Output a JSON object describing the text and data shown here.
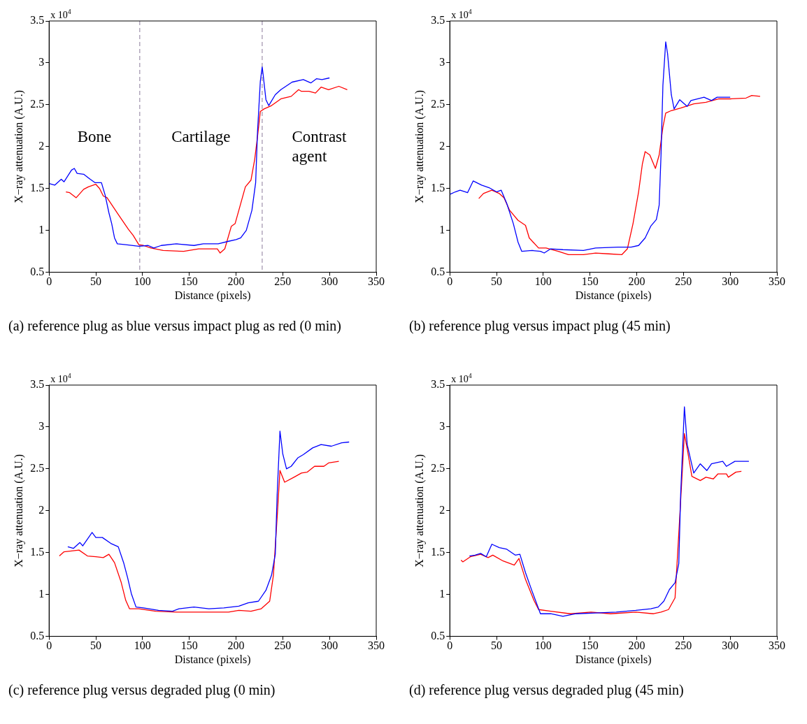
{
  "chart_data": [
    {
      "type": "line",
      "title": "(a) reference plug as blue versus impact plug as red (0 min)",
      "xlabel": "Distance (pixels)",
      "ylabel": "X−ray attenuation (A.U.)",
      "annotations": [
        "x 10$^{4}$",
        "Bone",
        "Cartilage",
        "Contrast agent"
      ],
      "xlim": [
        0,
        350
      ],
      "xticks": [
        0,
        50,
        100,
        150,
        200,
        250,
        300,
        350
      ],
      "ylim": [
        0.5,
        3.5
      ],
      "yticks": [
        0.5,
        1,
        1.5,
        2,
        2.5,
        3,
        3.5
      ],
      "grid": false,
      "legend": false,
      "ref_lines": [
        {
          "axis": "x",
          "value": 97,
          "color": "#8a7a9a",
          "line_style": "dashed"
        },
        {
          "axis": "x",
          "value": 228,
          "color": "#8a7a9a",
          "line_style": "dashed"
        }
      ],
      "series": [
        {
          "color": "#0000ff",
          "x": [
            0,
            6,
            13,
            16,
            24,
            27,
            30,
            37,
            44,
            49,
            56,
            60,
            64,
            67,
            70,
            73,
            82,
            96,
            106,
            112,
            120,
            136,
            155,
            165,
            181,
            192,
            200,
            205,
            211,
            217,
            221,
            223,
            226,
            228,
            229,
            232,
            235,
            242,
            248,
            260,
            272,
            280,
            286,
            292,
            300
          ],
          "values": [
            1.56,
            1.54,
            1.61,
            1.58,
            1.72,
            1.74,
            1.68,
            1.67,
            1.61,
            1.57,
            1.57,
            1.42,
            1.21,
            1.08,
            0.91,
            0.84,
            0.83,
            0.81,
            0.82,
            0.79,
            0.82,
            0.84,
            0.82,
            0.84,
            0.84,
            0.87,
            0.89,
            0.91,
            1.0,
            1.24,
            1.57,
            2.18,
            2.78,
            2.95,
            2.86,
            2.56,
            2.49,
            2.62,
            2.68,
            2.77,
            2.8,
            2.76,
            2.81,
            2.8,
            2.82
          ]
        },
        {
          "color": "#ff0000",
          "x": [
            18,
            22,
            29,
            37,
            42,
            50,
            54,
            58,
            62,
            74,
            85,
            90,
            96,
            101,
            109,
            122,
            144,
            160,
            180,
            183,
            188,
            195,
            199,
            205,
            210,
            216,
            220,
            223,
            226,
            230,
            238,
            248,
            259,
            267,
            270,
            278,
            285,
            291,
            299,
            310,
            319
          ],
          "values": [
            1.46,
            1.45,
            1.39,
            1.49,
            1.52,
            1.55,
            1.5,
            1.41,
            1.39,
            1.19,
            1.01,
            0.94,
            0.83,
            0.82,
            0.79,
            0.76,
            0.75,
            0.78,
            0.78,
            0.73,
            0.78,
            1.05,
            1.08,
            1.32,
            1.52,
            1.6,
            1.85,
            2.12,
            2.42,
            2.45,
            2.49,
            2.57,
            2.6,
            2.68,
            2.66,
            2.66,
            2.64,
            2.71,
            2.68,
            2.72,
            2.68
          ]
        }
      ]
    },
    {
      "type": "line",
      "title": "(b) reference plug versus impact plug (45 min)",
      "xlabel": "Distance (pixels)",
      "ylabel": "X−ray attenuation (A.U.)",
      "annotations": [
        "x 10$^{4}$"
      ],
      "xlim": [
        0,
        350
      ],
      "xticks": [
        0,
        50,
        100,
        150,
        200,
        250,
        300,
        350
      ],
      "ylim": [
        0.5,
        3.5
      ],
      "yticks": [
        0.5,
        1,
        1.5,
        2,
        2.5,
        3,
        3.5
      ],
      "grid": false,
      "legend": false,
      "series": [
        {
          "color": "#0000ff",
          "x": [
            0,
            6,
            11,
            19,
            25,
            34,
            42,
            50,
            55,
            61,
            68,
            73,
            77,
            88,
            97,
            101,
            108,
            121,
            143,
            156,
            180,
            194,
            202,
            209,
            215,
            221,
            224,
            226,
            228,
            231,
            233,
            237,
            240,
            246,
            254,
            258,
            272,
            280,
            286,
            300
          ],
          "values": [
            1.43,
            1.46,
            1.48,
            1.45,
            1.59,
            1.54,
            1.51,
            1.46,
            1.48,
            1.32,
            1.08,
            0.86,
            0.75,
            0.76,
            0.75,
            0.73,
            0.78,
            0.77,
            0.76,
            0.79,
            0.8,
            0.8,
            0.82,
            0.91,
            1.05,
            1.13,
            1.3,
            1.9,
            2.73,
            3.25,
            3.11,
            2.62,
            2.45,
            2.56,
            2.48,
            2.55,
            2.59,
            2.55,
            2.59,
            2.59
          ]
        },
        {
          "color": "#ff0000",
          "x": [
            31,
            36,
            45,
            53,
            58,
            64,
            73,
            81,
            85,
            95,
            103,
            116,
            127,
            143,
            156,
            170,
            184,
            190,
            196,
            202,
            206,
            209,
            214,
            220,
            224,
            228,
            231,
            237,
            247,
            261,
            274,
            288,
            301,
            317,
            323,
            332
          ],
          "values": [
            1.38,
            1.44,
            1.48,
            1.44,
            1.39,
            1.24,
            1.12,
            1.06,
            0.91,
            0.79,
            0.79,
            0.75,
            0.71,
            0.71,
            0.73,
            0.72,
            0.71,
            0.78,
            1.08,
            1.46,
            1.79,
            1.94,
            1.9,
            1.74,
            1.9,
            2.23,
            2.4,
            2.43,
            2.46,
            2.51,
            2.53,
            2.57,
            2.57,
            2.58,
            2.61,
            2.6
          ]
        }
      ]
    },
    {
      "type": "line",
      "title": "(c) reference plug versus degraded plug (0 min)",
      "xlabel": "Distance (pixels)",
      "ylabel": "X−ray attenuation (A.U.)",
      "annotations": [
        "x 10$^{4}$"
      ],
      "xlim": [
        0,
        350
      ],
      "xticks": [
        0,
        50,
        100,
        150,
        200,
        250,
        300,
        350
      ],
      "ylim": [
        0.5,
        3.5
      ],
      "yticks": [
        0.5,
        1,
        1.5,
        2,
        2.5,
        3,
        3.5
      ],
      "grid": false,
      "legend": false,
      "series": [
        {
          "color": "#0000ff",
          "x": [
            20,
            26,
            33,
            36,
            46,
            50,
            57,
            66,
            74,
            80,
            84,
            88,
            93,
            101,
            117,
            132,
            139,
            155,
            171,
            187,
            203,
            213,
            224,
            232,
            238,
            242,
            244,
            247,
            250,
            254,
            259,
            266,
            272,
            282,
            291,
            302,
            313,
            321
          ],
          "values": [
            1.57,
            1.55,
            1.62,
            1.58,
            1.74,
            1.68,
            1.68,
            1.61,
            1.57,
            1.37,
            1.2,
            1.01,
            0.85,
            0.84,
            0.81,
            0.8,
            0.83,
            0.85,
            0.83,
            0.84,
            0.86,
            0.9,
            0.92,
            1.05,
            1.23,
            1.48,
            2.19,
            2.95,
            2.68,
            2.5,
            2.53,
            2.63,
            2.67,
            2.75,
            2.79,
            2.77,
            2.81,
            2.82
          ]
        },
        {
          "color": "#ff0000",
          "x": [
            11,
            16,
            24,
            32,
            41,
            50,
            58,
            64,
            70,
            77,
            82,
            86,
            96,
            114,
            136,
            160,
            181,
            192,
            203,
            216,
            227,
            236,
            240,
            244,
            247,
            252,
            262,
            270,
            276,
            284,
            294,
            299,
            310
          ],
          "values": [
            1.46,
            1.51,
            1.52,
            1.53,
            1.46,
            1.45,
            1.44,
            1.48,
            1.38,
            1.15,
            0.93,
            0.83,
            0.83,
            0.8,
            0.79,
            0.79,
            0.79,
            0.79,
            0.81,
            0.8,
            0.83,
            0.92,
            1.23,
            1.92,
            2.48,
            2.34,
            2.4,
            2.45,
            2.46,
            2.53,
            2.53,
            2.57,
            2.59
          ]
        }
      ]
    },
    {
      "type": "line",
      "title": "(d) reference plug versus degraded plug (45 min)",
      "xlabel": "Distance (pixels)",
      "ylabel": "X−ray attenuation (A.U.)",
      "annotations": [
        "x 10$^{4}$"
      ],
      "xlim": [
        0,
        350
      ],
      "xticks": [
        0,
        50,
        100,
        150,
        200,
        250,
        300,
        350
      ],
      "ylim": [
        0.5,
        3.5
      ],
      "yticks": [
        0.5,
        1,
        1.5,
        2,
        2.5,
        3,
        3.5
      ],
      "grid": false,
      "legend": false,
      "series": [
        {
          "color": "#0000ff",
          "x": [
            21,
            27,
            33,
            39,
            45,
            53,
            61,
            70,
            75,
            81,
            88,
            97,
            108,
            121,
            135,
            156,
            178,
            199,
            215,
            223,
            229,
            235,
            241,
            245,
            247,
            251,
            254,
            261,
            268,
            275,
            280,
            292,
            296,
            305,
            320
          ],
          "values": [
            1.46,
            1.47,
            1.49,
            1.45,
            1.6,
            1.56,
            1.54,
            1.47,
            1.48,
            1.26,
            1.04,
            0.77,
            0.77,
            0.74,
            0.77,
            0.78,
            0.79,
            0.81,
            0.83,
            0.85,
            0.92,
            1.06,
            1.14,
            1.37,
            2.19,
            3.24,
            2.79,
            2.45,
            2.56,
            2.48,
            2.56,
            2.59,
            2.53,
            2.59,
            2.59
          ]
        },
        {
          "color": "#ff0000",
          "x": [
            12,
            14,
            22,
            33,
            41,
            46,
            57,
            69,
            74,
            81,
            90,
            95,
            108,
            129,
            151,
            172,
            199,
            218,
            226,
            234,
            241,
            246,
            251,
            254,
            259,
            268,
            274,
            282,
            287,
            296,
            298,
            306,
            312
          ],
          "values": [
            1.41,
            1.39,
            1.45,
            1.48,
            1.44,
            1.47,
            1.4,
            1.35,
            1.43,
            1.18,
            0.93,
            0.82,
            0.8,
            0.77,
            0.79,
            0.77,
            0.79,
            0.77,
            0.79,
            0.82,
            0.96,
            1.92,
            2.92,
            2.74,
            2.41,
            2.36,
            2.4,
            2.38,
            2.44,
            2.44,
            2.4,
            2.46,
            2.47
          ]
        }
      ]
    }
  ]
}
